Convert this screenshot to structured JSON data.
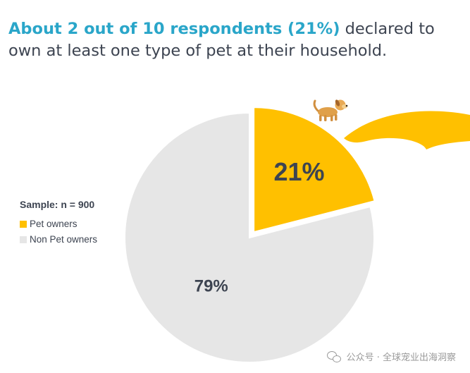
{
  "headline": {
    "highlight": "About 2 out of 10 respondents (21%)",
    "rest": " declared to own at least one type of pet at their household."
  },
  "legend": {
    "sample": "Sample: n = 900",
    "items": [
      {
        "label": "Pet owners",
        "color": "#ffc000"
      },
      {
        "label": "Non Pet owners",
        "color": "#e6e6e6"
      }
    ]
  },
  "chart_data": {
    "type": "pie",
    "slices": [
      {
        "name": "Pet owners",
        "value": 21,
        "label": "21%",
        "color": "#ffc000",
        "exploded": true
      },
      {
        "name": "Non Pet owners",
        "value": 79,
        "label": "79%",
        "color": "#e6e6e6",
        "exploded": false
      }
    ],
    "start_angle": "12 o'clock",
    "direction": "clockwise"
  },
  "decoration": {
    "dog_icon": "dog-icon",
    "arrow_icon": "curved-arrow-icon",
    "arrow_color": "#ffc000"
  },
  "watermark": {
    "text": "公众号 · 全球宠业出海洞察",
    "icon": "wechat-icon"
  }
}
